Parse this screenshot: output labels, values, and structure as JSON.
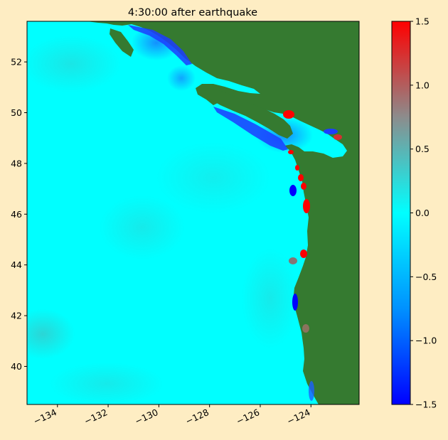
{
  "chart_data": {
    "type": "heatmap",
    "title": "4:30:00 after earthquake",
    "xlabel": "",
    "ylabel": "",
    "xlim": [
      -135.2,
      -122.1
    ],
    "ylim": [
      38.5,
      53.6
    ],
    "x_ticks": [
      -134,
      -132,
      -130,
      -128,
      -126,
      -124
    ],
    "x_tick_labels": [
      "−134",
      "−132",
      "−130",
      "−128",
      "−126",
      "−124"
    ],
    "y_ticks": [
      40,
      42,
      44,
      46,
      48,
      50,
      52
    ],
    "y_tick_labels": [
      "40",
      "42",
      "44",
      "46",
      "48",
      "50",
      "52"
    ],
    "colorbar": {
      "range": [
        -1.5,
        1.5
      ],
      "ticks": [
        -1.5,
        -1.0,
        -0.5,
        0.0,
        0.5,
        1.0,
        1.5
      ],
      "tick_labels": [
        "−1.5",
        "−1.0",
        "−0.5",
        "0.0",
        "0.5",
        "1.0",
        "1.5"
      ],
      "colors": [
        "#0000ff",
        "#0091ff",
        "#00ffff",
        "#8c8c8c",
        "#ff0000"
      ]
    },
    "colors": {
      "ocean": "#00ffff",
      "land": "#357a30",
      "background": "#feedc3"
    },
    "grid": false,
    "legend": "none"
  }
}
